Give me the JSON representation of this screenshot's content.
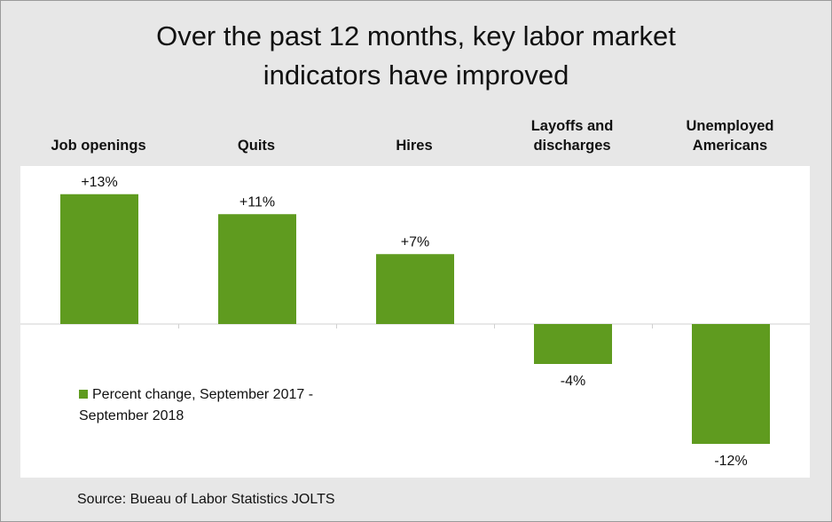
{
  "chart_data": {
    "type": "bar",
    "title": "Over the past 12 months, key labor market\nindicators have improved",
    "categories": [
      "Job openings",
      "Quits",
      "Hires",
      "Layoffs and\ndischarges",
      "Unemployed\nAmericans"
    ],
    "series": [
      {
        "name": "Percent change, September 2017 - September 2018",
        "values": [
          13,
          11,
          7,
          -4,
          -12
        ],
        "data_labels": [
          "+13%",
          "+11%",
          "+7%",
          "-4%",
          "-12%"
        ]
      }
    ],
    "ylim": [
      -14,
      14
    ],
    "xlabel": "",
    "ylabel": "",
    "grid": false,
    "legend_position": "left, inside plot below axis",
    "category_label_position": "top"
  },
  "source": "Source: Bueau of Labor Statistics JOLTS",
  "colors": {
    "bar": "#5f9b1f",
    "background": "#e7e7e7",
    "plot_background": "#ffffff",
    "axis": "#d0d0d0"
  }
}
